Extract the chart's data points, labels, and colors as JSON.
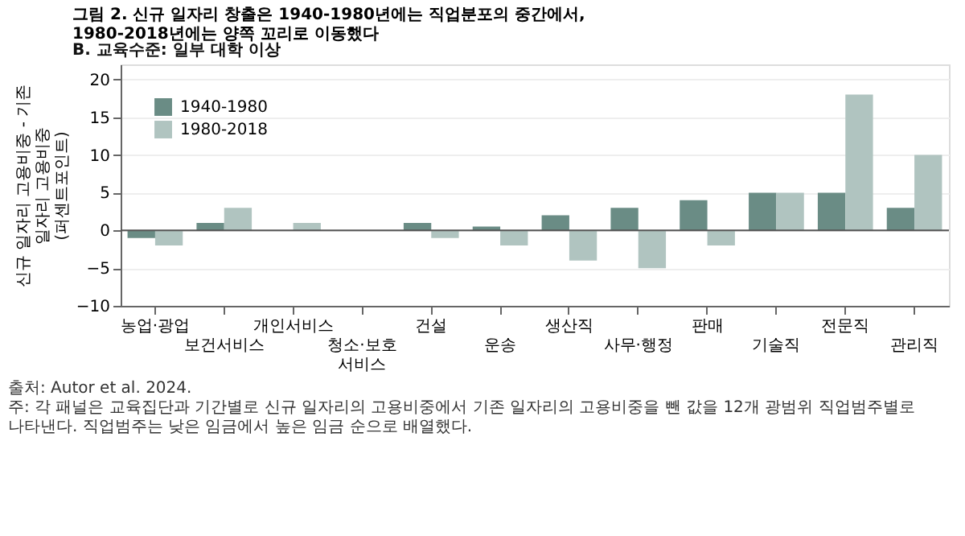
{
  "chart_data": {
    "type": "bar",
    "title": "그림 2. 신규 일자리 창출은 1940-1980년에는 직업분포의 중간에서,\n1980-2018년에는 양쪽 꼬리로 이동했다",
    "subtitle": "B. 교육수준: 일부 대학 이상",
    "ylabel": "신규 일자리 고용비중 - 기존 일자리 고용비중\n(퍼센트포인트)",
    "categories": [
      "농업·광업",
      "보건서비스",
      "개인서비스",
      "청소·보호 서비스",
      "건설",
      "운송",
      "생산직",
      "사무·행정",
      "판매",
      "기술직",
      "전문직",
      "관리직"
    ],
    "series": [
      {
        "name": "1940-1980",
        "color": "#6a8c85",
        "values": [
          -1,
          1,
          0,
          0,
          1,
          0.5,
          2,
          3,
          4,
          5,
          5,
          3
        ]
      },
      {
        "name": "1980-2018",
        "color": "#b0c4c0",
        "values": [
          -2,
          3,
          1,
          0,
          -1,
          -2,
          -4,
          -5,
          -2,
          5,
          18,
          10
        ]
      }
    ],
    "ylim": [
      -10,
      22
    ],
    "yticks": [
      -10,
      -5,
      0,
      5,
      10,
      15,
      20
    ],
    "grid": "y",
    "legend": "top left",
    "ref_lines": [
      {
        "axis": "y",
        "value": 0,
        "color": "#555555"
      }
    ],
    "annotations": [
      "출처: Autor et al. 2024.",
      "주: 각 패널은 교육집단과 기간별로 신규 일자리의 고용비중에서 기존 일자리의 고용비중을 뺀 값을 12개 광범위 직업범주별로 나타낸다. 직업범주는 낮은 임금에서 높은 임금 순으로 배열했다."
    ]
  }
}
